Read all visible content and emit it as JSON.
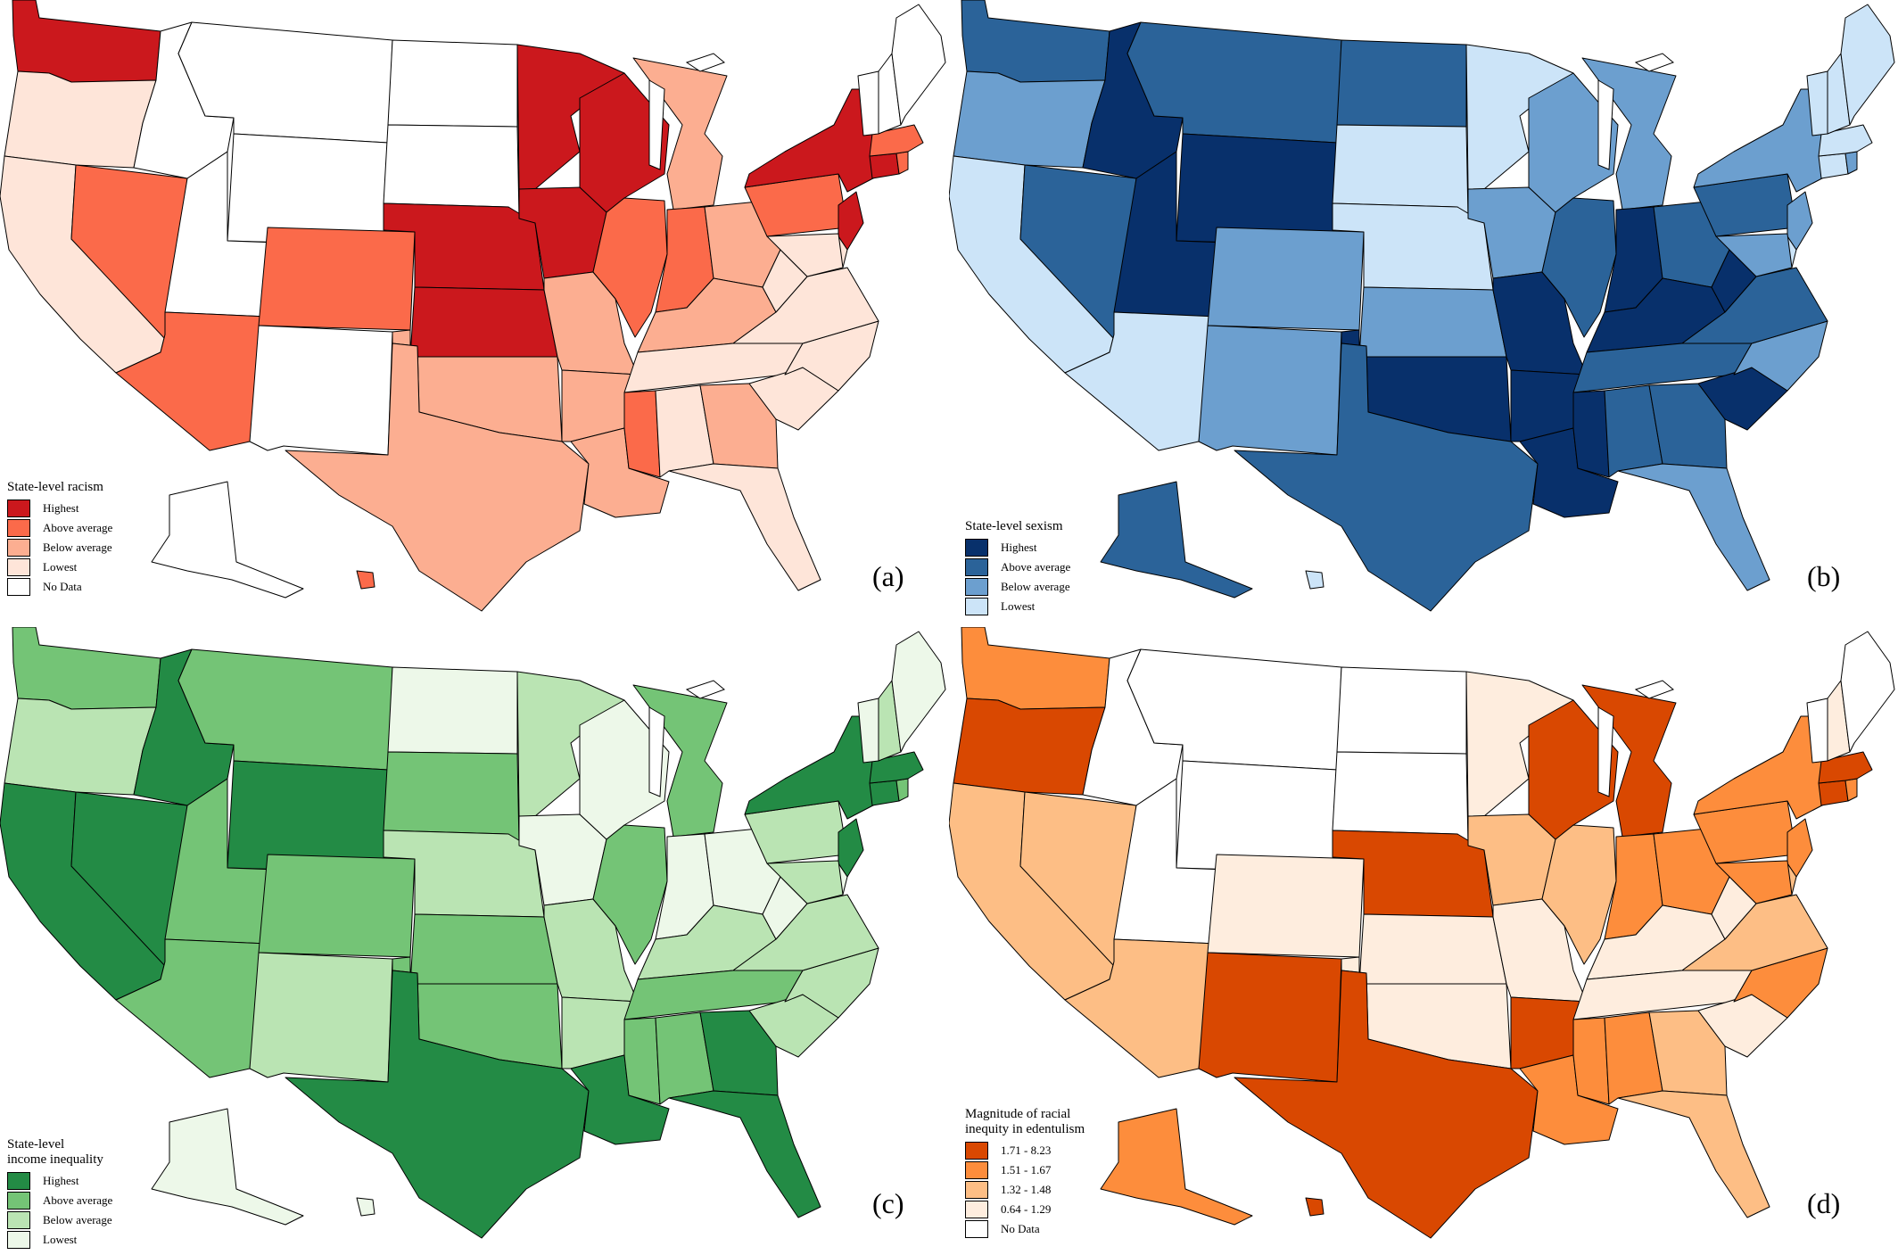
{
  "panels": [
    {
      "id": "a",
      "label": "(a)",
      "legend": {
        "title": "State-level racism",
        "items": [
          {
            "label": "Highest",
            "color": "#cb181d"
          },
          {
            "label": "Above average",
            "color": "#fb6a4a"
          },
          {
            "label": "Below average",
            "color": "#fcae91"
          },
          {
            "label": "Lowest",
            "color": "#fee5d9"
          },
          {
            "label": "No Data",
            "color": "#ffffff"
          }
        ]
      },
      "states": {
        "WA": 0,
        "OR": 3,
        "CA": 3,
        "NV": 1,
        "ID": 4,
        "MT": 4,
        "WY": 4,
        "UT": 4,
        "AZ": 1,
        "CO": 1,
        "NM": 4,
        "ND": 4,
        "SD": 4,
        "NE": 0,
        "KS": 0,
        "OK": 2,
        "TX": 2,
        "MN": 0,
        "IA": 0,
        "MO": 2,
        "AR": 2,
        "LA": 2,
        "WI": 0,
        "IL": 1,
        "MI": 2,
        "IN": 1,
        "OH": 2,
        "KY": 2,
        "TN": 3,
        "MS": 1,
        "AL": 3,
        "GA": 2,
        "FL": 3,
        "SC": 3,
        "NC": 3,
        "VA": 3,
        "WV": 3,
        "PA": 1,
        "NY": 0,
        "NJ": 0,
        "DE": 3,
        "MD": 3,
        "CT": 0,
        "RI": 1,
        "MA": 1,
        "VT": 4,
        "NH": 4,
        "ME": 4,
        "AK": 4,
        "HI": 1
      }
    },
    {
      "id": "b",
      "label": "(b)",
      "legend": {
        "title": "State-level sexism",
        "items": [
          {
            "label": "Highest",
            "color": "#08306b"
          },
          {
            "label": "Above average",
            "color": "#2b6399"
          },
          {
            "label": "Below average",
            "color": "#6c9fcf"
          },
          {
            "label": "Lowest",
            "color": "#cce4f8"
          }
        ]
      },
      "states": {
        "WA": 1,
        "OR": 2,
        "CA": 3,
        "NV": 1,
        "ID": 0,
        "MT": 1,
        "WY": 0,
        "UT": 0,
        "AZ": 3,
        "CO": 2,
        "NM": 2,
        "ND": 1,
        "SD": 3,
        "NE": 3,
        "KS": 2,
        "OK": 0,
        "TX": 1,
        "MN": 3,
        "IA": 2,
        "MO": 0,
        "AR": 0,
        "LA": 0,
        "WI": 2,
        "IL": 1,
        "MI": 2,
        "IN": 0,
        "OH": 1,
        "KY": 0,
        "TN": 1,
        "MS": 0,
        "AL": 1,
        "GA": 1,
        "FL": 2,
        "SC": 0,
        "NC": 2,
        "VA": 1,
        "WV": 0,
        "PA": 1,
        "NY": 2,
        "NJ": 2,
        "DE": 3,
        "MD": 2,
        "CT": 3,
        "RI": 2,
        "MA": 3,
        "VT": 3,
        "NH": 3,
        "ME": 3,
        "AK": 1,
        "HI": 3
      }
    },
    {
      "id": "c",
      "label": "(c)",
      "legend": {
        "title": "State-level\nincome inequality",
        "items": [
          {
            "label": "Highest",
            "color": "#238b45"
          },
          {
            "label": "Above average",
            "color": "#74c476"
          },
          {
            "label": "Below average",
            "color": "#bae4b3"
          },
          {
            "label": "Lowest",
            "color": "#edf8e9"
          }
        ]
      },
      "states": {
        "WA": 1,
        "OR": 2,
        "CA": 0,
        "NV": 0,
        "ID": 0,
        "MT": 1,
        "WY": 0,
        "UT": 1,
        "AZ": 1,
        "CO": 1,
        "NM": 2,
        "ND": 3,
        "SD": 1,
        "NE": 2,
        "KS": 1,
        "OK": 1,
        "TX": 0,
        "MN": 2,
        "IA": 3,
        "MO": 2,
        "AR": 2,
        "LA": 0,
        "WI": 3,
        "IL": 1,
        "MI": 1,
        "IN": 3,
        "OH": 3,
        "KY": 2,
        "TN": 1,
        "MS": 1,
        "AL": 1,
        "GA": 0,
        "FL": 0,
        "SC": 2,
        "NC": 2,
        "VA": 2,
        "WV": 3,
        "PA": 2,
        "NY": 0,
        "NJ": 0,
        "DE": 3,
        "MD": 2,
        "CT": 0,
        "RI": 1,
        "MA": 0,
        "VT": 3,
        "NH": 2,
        "ME": 3,
        "AK": 3,
        "HI": 3
      }
    },
    {
      "id": "d",
      "label": "(d)",
      "legend": {
        "title": "Magnitude of racial\ninequity in edentulism",
        "items": [
          {
            "label": "1.71 - 8.23",
            "color": "#d94801"
          },
          {
            "label": "1.51 - 1.67",
            "color": "#fd8d3c"
          },
          {
            "label": "1.32 - 1.48",
            "color": "#fdbe85"
          },
          {
            "label": "0.64 - 1.29",
            "color": "#feedde"
          },
          {
            "label": "No Data",
            "color": "#ffffff"
          }
        ]
      },
      "states": {
        "WA": 1,
        "OR": 0,
        "CA": 2,
        "NV": 2,
        "ID": 4,
        "MT": 4,
        "WY": 4,
        "UT": 4,
        "AZ": 2,
        "CO": 3,
        "NM": 0,
        "ND": 4,
        "SD": 4,
        "NE": 0,
        "KS": 3,
        "OK": 3,
        "TX": 0,
        "MN": 3,
        "IA": 2,
        "MO": 3,
        "AR": 0,
        "LA": 1,
        "WI": 0,
        "IL": 2,
        "MI": 0,
        "IN": 1,
        "OH": 1,
        "KY": 3,
        "TN": 3,
        "MS": 1,
        "AL": 1,
        "GA": 2,
        "FL": 2,
        "SC": 3,
        "NC": 1,
        "VA": 2,
        "WV": 3,
        "PA": 1,
        "NY": 1,
        "NJ": 1,
        "DE": 2,
        "MD": 1,
        "CT": 0,
        "RI": 1,
        "MA": 0,
        "VT": 4,
        "NH": 3,
        "ME": 4,
        "AK": 1,
        "HI": 0
      }
    }
  ]
}
